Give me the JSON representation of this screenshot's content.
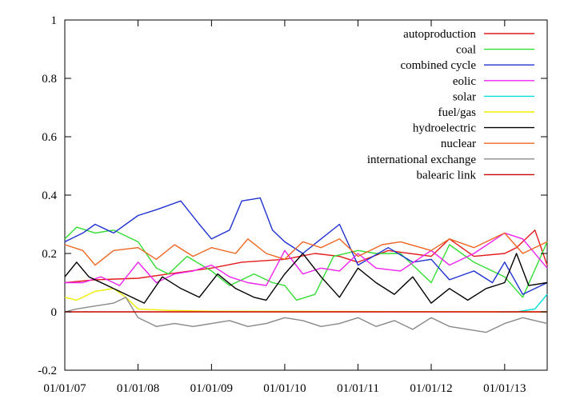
{
  "chart_data": {
    "type": "line",
    "title": "",
    "xlabel": "",
    "ylabel": "",
    "xlim": [
      "2007-01-01",
      "2013-08-01"
    ],
    "ylim": [
      -0.2,
      1
    ],
    "x_ticks": [
      "01/01/07",
      "01/01/08",
      "01/01/09",
      "01/01/10",
      "01/01/11",
      "01/01/12",
      "01/01/13"
    ],
    "y_ticks": [
      "-0.2",
      "0",
      "0.2",
      "0.4",
      "0.6",
      "0.8",
      "1"
    ],
    "grid": false,
    "legend_position": "top-right",
    "series": [
      {
        "name": "autoproduction",
        "color": "#e41a1c",
        "points": [
          [
            "2007-01-01",
            0.1
          ],
          [
            "2007-06-01",
            0.11
          ],
          [
            "2008-01-01",
            0.115
          ],
          [
            "2008-06-01",
            0.13
          ],
          [
            "2009-01-01",
            0.15
          ],
          [
            "2009-06-01",
            0.17
          ],
          [
            "2010-01-01",
            0.18
          ],
          [
            "2010-06-01",
            0.2
          ],
          [
            "2010-10-01",
            0.19
          ],
          [
            "2011-01-01",
            0.17
          ],
          [
            "2011-06-01",
            0.21
          ],
          [
            "2012-01-01",
            0.19
          ],
          [
            "2012-04-01",
            0.25
          ],
          [
            "2012-08-01",
            0.19
          ],
          [
            "2013-01-01",
            0.2
          ],
          [
            "2013-03-01",
            0.22
          ],
          [
            "2013-06-01",
            0.28
          ],
          [
            "2013-08-01",
            0.16
          ]
        ]
      },
      {
        "name": "coal",
        "color": "#33dd33",
        "points": [
          [
            "2007-01-01",
            0.25
          ],
          [
            "2007-03-01",
            0.29
          ],
          [
            "2007-06-01",
            0.27
          ],
          [
            "2007-09-01",
            0.28
          ],
          [
            "2008-01-01",
            0.24
          ],
          [
            "2008-04-01",
            0.15
          ],
          [
            "2008-06-01",
            0.13
          ],
          [
            "2008-09-01",
            0.19
          ],
          [
            "2009-01-01",
            0.14
          ],
          [
            "2009-04-01",
            0.09
          ],
          [
            "2009-08-01",
            0.13
          ],
          [
            "2009-11-01",
            0.1
          ],
          [
            "2010-01-01",
            0.09
          ],
          [
            "2010-03-01",
            0.04
          ],
          [
            "2010-06-01",
            0.06
          ],
          [
            "2010-09-01",
            0.19
          ],
          [
            "2011-01-01",
            0.21
          ],
          [
            "2011-04-01",
            0.2
          ],
          [
            "2011-08-01",
            0.2
          ],
          [
            "2012-01-01",
            0.1
          ],
          [
            "2012-04-01",
            0.23
          ],
          [
            "2012-08-01",
            0.17
          ],
          [
            "2013-01-01",
            0.12
          ],
          [
            "2013-04-01",
            0.05
          ],
          [
            "2013-08-01",
            0.24
          ]
        ]
      },
      {
        "name": "combined cycle",
        "color": "#1f32d0",
        "points": [
          [
            "2007-01-01",
            0.24
          ],
          [
            "2007-04-01",
            0.27
          ],
          [
            "2007-06-01",
            0.3
          ],
          [
            "2007-09-01",
            0.27
          ],
          [
            "2008-01-01",
            0.33
          ],
          [
            "2008-04-01",
            0.35
          ],
          [
            "2008-08-01",
            0.38
          ],
          [
            "2008-11-01",
            0.3
          ],
          [
            "2009-01-01",
            0.25
          ],
          [
            "2009-04-01",
            0.28
          ],
          [
            "2009-06-01",
            0.38
          ],
          [
            "2009-09-01",
            0.39
          ],
          [
            "2009-11-01",
            0.28
          ],
          [
            "2010-01-01",
            0.24
          ],
          [
            "2010-04-01",
            0.2
          ],
          [
            "2010-07-01",
            0.25
          ],
          [
            "2010-10-01",
            0.3
          ],
          [
            "2011-01-01",
            0.16
          ],
          [
            "2011-06-01",
            0.22
          ],
          [
            "2011-10-01",
            0.17
          ],
          [
            "2012-01-01",
            0.18
          ],
          [
            "2012-04-01",
            0.11
          ],
          [
            "2012-08-01",
            0.14
          ],
          [
            "2012-11-01",
            0.1
          ],
          [
            "2013-01-01",
            0.17
          ],
          [
            "2013-04-01",
            0.06
          ],
          [
            "2013-08-01",
            0.1
          ]
        ]
      },
      {
        "name": "eolic",
        "color": "#ee22ee",
        "points": [
          [
            "2007-01-01",
            0.1
          ],
          [
            "2007-04-01",
            0.1
          ],
          [
            "2007-07-01",
            0.12
          ],
          [
            "2007-10-01",
            0.09
          ],
          [
            "2008-01-01",
            0.17
          ],
          [
            "2008-04-01",
            0.1
          ],
          [
            "2008-07-01",
            0.13
          ],
          [
            "2008-10-01",
            0.14
          ],
          [
            "2009-01-01",
            0.16
          ],
          [
            "2009-04-01",
            0.12
          ],
          [
            "2009-07-01",
            0.1
          ],
          [
            "2009-10-01",
            0.09
          ],
          [
            "2010-01-01",
            0.21
          ],
          [
            "2010-04-01",
            0.13
          ],
          [
            "2010-07-01",
            0.15
          ],
          [
            "2010-10-01",
            0.14
          ],
          [
            "2011-01-01",
            0.2
          ],
          [
            "2011-04-01",
            0.15
          ],
          [
            "2011-08-01",
            0.14
          ],
          [
            "2012-01-01",
            0.21
          ],
          [
            "2012-04-01",
            0.16
          ],
          [
            "2012-08-01",
            0.2
          ],
          [
            "2013-01-01",
            0.27
          ],
          [
            "2013-04-01",
            0.25
          ],
          [
            "2013-08-01",
            0.15
          ]
        ]
      },
      {
        "name": "solar",
        "color": "#00dddd",
        "points": [
          [
            "2012-12-01",
            0.0
          ],
          [
            "2013-03-01",
            0.0
          ],
          [
            "2013-06-01",
            0.01
          ],
          [
            "2013-08-01",
            0.06
          ]
        ]
      },
      {
        "name": "fuel/gas",
        "color": "#eeee00",
        "points": [
          [
            "2007-01-01",
            0.05
          ],
          [
            "2007-03-01",
            0.04
          ],
          [
            "2007-06-01",
            0.07
          ],
          [
            "2007-09-01",
            0.08
          ],
          [
            "2007-11-01",
            0.05
          ],
          [
            "2008-01-01",
            0.01
          ],
          [
            "2008-06-01",
            0.005
          ],
          [
            "2009-01-01",
            0.002
          ],
          [
            "2013-08-01",
            0.0
          ]
        ]
      },
      {
        "name": "hydroelectric",
        "color": "#000000",
        "points": [
          [
            "2007-01-01",
            0.12
          ],
          [
            "2007-03-01",
            0.17
          ],
          [
            "2007-05-01",
            0.12
          ],
          [
            "2007-08-01",
            0.09
          ],
          [
            "2007-11-01",
            0.06
          ],
          [
            "2008-02-01",
            0.03
          ],
          [
            "2008-05-01",
            0.12
          ],
          [
            "2008-08-01",
            0.08
          ],
          [
            "2008-11-01",
            0.05
          ],
          [
            "2009-02-01",
            0.13
          ],
          [
            "2009-05-01",
            0.08
          ],
          [
            "2009-08-01",
            0.05
          ],
          [
            "2009-10-01",
            0.04
          ],
          [
            "2010-01-01",
            0.13
          ],
          [
            "2010-04-01",
            0.2
          ],
          [
            "2010-07-01",
            0.12
          ],
          [
            "2010-10-01",
            0.05
          ],
          [
            "2011-01-01",
            0.15
          ],
          [
            "2011-04-01",
            0.1
          ],
          [
            "2011-07-01",
            0.06
          ],
          [
            "2011-10-01",
            0.12
          ],
          [
            "2012-01-01",
            0.03
          ],
          [
            "2012-04-01",
            0.08
          ],
          [
            "2012-07-01",
            0.04
          ],
          [
            "2012-10-01",
            0.08
          ],
          [
            "2013-01-01",
            0.1
          ],
          [
            "2013-03-01",
            0.2
          ],
          [
            "2013-05-01",
            0.09
          ],
          [
            "2013-08-01",
            0.1
          ]
        ]
      },
      {
        "name": "nuclear",
        "color": "#ee6622",
        "points": [
          [
            "2007-01-01",
            0.23
          ],
          [
            "2007-04-01",
            0.21
          ],
          [
            "2007-06-01",
            0.16
          ],
          [
            "2007-09-01",
            0.21
          ],
          [
            "2008-01-01",
            0.22
          ],
          [
            "2008-04-01",
            0.18
          ],
          [
            "2008-07-01",
            0.23
          ],
          [
            "2008-10-01",
            0.19
          ],
          [
            "2009-01-01",
            0.22
          ],
          [
            "2009-05-01",
            0.2
          ],
          [
            "2009-07-01",
            0.25
          ],
          [
            "2009-10-01",
            0.2
          ],
          [
            "2010-01-01",
            0.18
          ],
          [
            "2010-04-01",
            0.24
          ],
          [
            "2010-07-01",
            0.22
          ],
          [
            "2010-10-01",
            0.25
          ],
          [
            "2011-01-01",
            0.19
          ],
          [
            "2011-05-01",
            0.23
          ],
          [
            "2011-08-01",
            0.24
          ],
          [
            "2012-01-01",
            0.21
          ],
          [
            "2012-04-01",
            0.25
          ],
          [
            "2012-08-01",
            0.22
          ],
          [
            "2013-01-01",
            0.27
          ],
          [
            "2013-04-01",
            0.2
          ],
          [
            "2013-08-01",
            0.24
          ]
        ]
      },
      {
        "name": "international exchange",
        "color": "#888888",
        "points": [
          [
            "2007-01-01",
            0.0
          ],
          [
            "2007-03-01",
            0.01
          ],
          [
            "2007-06-01",
            0.02
          ],
          [
            "2007-09-01",
            0.03
          ],
          [
            "2007-11-01",
            0.05
          ],
          [
            "2008-01-01",
            -0.02
          ],
          [
            "2008-04-01",
            -0.05
          ],
          [
            "2008-07-01",
            -0.04
          ],
          [
            "2008-10-01",
            -0.05
          ],
          [
            "2009-01-01",
            -0.04
          ],
          [
            "2009-04-01",
            -0.03
          ],
          [
            "2009-07-01",
            -0.05
          ],
          [
            "2009-10-01",
            -0.04
          ],
          [
            "2010-01-01",
            -0.02
          ],
          [
            "2010-04-01",
            -0.03
          ],
          [
            "2010-07-01",
            -0.05
          ],
          [
            "2010-10-01",
            -0.04
          ],
          [
            "2011-01-01",
            -0.02
          ],
          [
            "2011-04-01",
            -0.05
          ],
          [
            "2011-07-01",
            -0.03
          ],
          [
            "2011-10-01",
            -0.06
          ],
          [
            "2012-01-01",
            -0.02
          ],
          [
            "2012-04-01",
            -0.05
          ],
          [
            "2012-07-01",
            -0.06
          ],
          [
            "2012-10-01",
            -0.07
          ],
          [
            "2013-01-01",
            -0.04
          ],
          [
            "2013-04-01",
            -0.02
          ],
          [
            "2013-08-01",
            -0.04
          ]
        ]
      },
      {
        "name": "balearic link",
        "color": "#cc0000",
        "points": [
          [
            "2007-01-01",
            0.0
          ],
          [
            "2013-08-01",
            0.0
          ]
        ]
      }
    ]
  }
}
